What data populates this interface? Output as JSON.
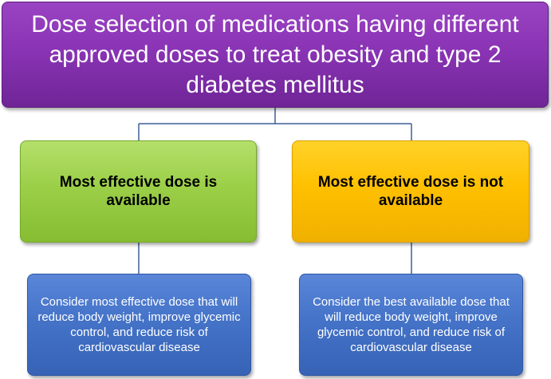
{
  "root": {
    "text": "Dose selection of medications having different approved doses to treat obesity and type 2 diabetes mellitus"
  },
  "branches": [
    {
      "condition": "Most effective dose is available",
      "recommendation": "Consider most effective dose that will reduce body weight, improve glycemic control, and reduce risk of cardiovascular disease"
    },
    {
      "condition": "Most effective dose is not available",
      "recommendation": "Consider the best available dose that will reduce body weight, improve glycemic control, and reduce risk of cardiovascular disease"
    }
  ],
  "colors": {
    "root_fill": "#8a34b5",
    "available_fill": "#9bcf48",
    "not_available_fill": "#ffc000",
    "recommendation_fill": "#4473c8",
    "connector": "#3f5f96"
  }
}
